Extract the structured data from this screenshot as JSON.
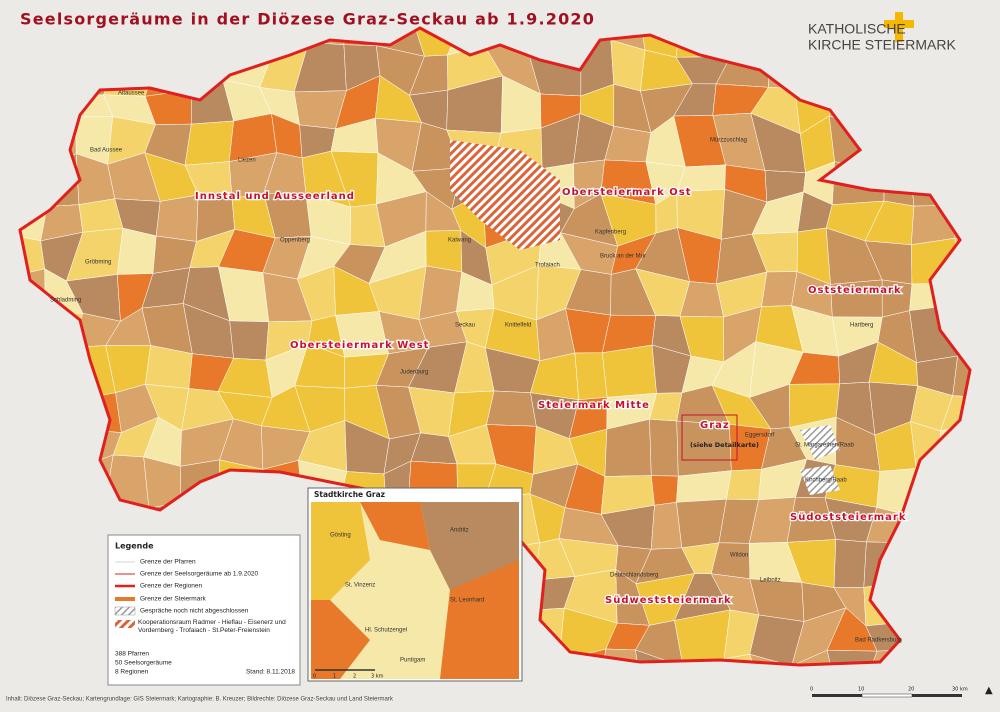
{
  "header": {
    "title": "Seelsorgeräume in der Diözese Graz-Seckau ab 1.9.2020",
    "logo_line1": "KATHOLISCHE",
    "logo_line2": "KIRCHE STEIERMARK"
  },
  "regions": [
    "Innstal und Ausseerland",
    "Obersteiermark Ost",
    "Obersteiermark West",
    "Oststeiermark",
    "Steiermark Mitte",
    "Graz",
    "Südoststeiermark",
    "Südweststeiermark"
  ],
  "graz_note": "(siehe Detailkarte)",
  "places": [
    "Altaussee",
    "Bad Aussee",
    "Gröbming",
    "Schladming",
    "Liezen",
    "Oppenberg",
    "Kalwang",
    "Trofaiach",
    "Kapfenberg",
    "Bruck an der Mur",
    "Seckau",
    "Knittelfeld",
    "Judenburg",
    "Hartberg",
    "Kirchberg/Raab",
    "St. Margarethen/Raab",
    "Eggersdorf",
    "Wildon",
    "Leibnitz",
    "Deutschlandsberg",
    "Bad Radkersburg",
    "Mürzzuschlag"
  ],
  "inset": {
    "title": "Stadtkirche Graz",
    "places": [
      "Gösting",
      "St. Vinzenz",
      "Hl. Schutzengel",
      "Andritz",
      "St. Leonhard",
      "Puntigam"
    ],
    "scale": [
      "0",
      "1",
      "2",
      "3 km"
    ]
  },
  "legend": {
    "title": "Legende",
    "items": [
      "Grenze der Pfarren",
      "Grenze der Seelsorgeräume ab 1.9.2020",
      "Grenze der Regionen",
      "Grenze der Steiermark",
      "Gespräche noch nicht abgeschlossen",
      "Kooperationsraum Radmer - Hieflau - Eisenerz und Vordernberg - Trofaiach - St.Peter-Freienstein"
    ],
    "stats": [
      "388 Pfarren",
      "50 Seelsorgeräume",
      "8 Regionen"
    ],
    "date": "Stand: 8.11.2018"
  },
  "scale": [
    "0",
    "10",
    "20",
    "30 km"
  ],
  "footer": "Inhalt: Diözese Graz-Seckau; Kartengrundlage: GIS Steiermark; Kartographie: B. Kreuzer; Bildrechte: Diözese Graz-Seckau und Land Steiermark"
}
